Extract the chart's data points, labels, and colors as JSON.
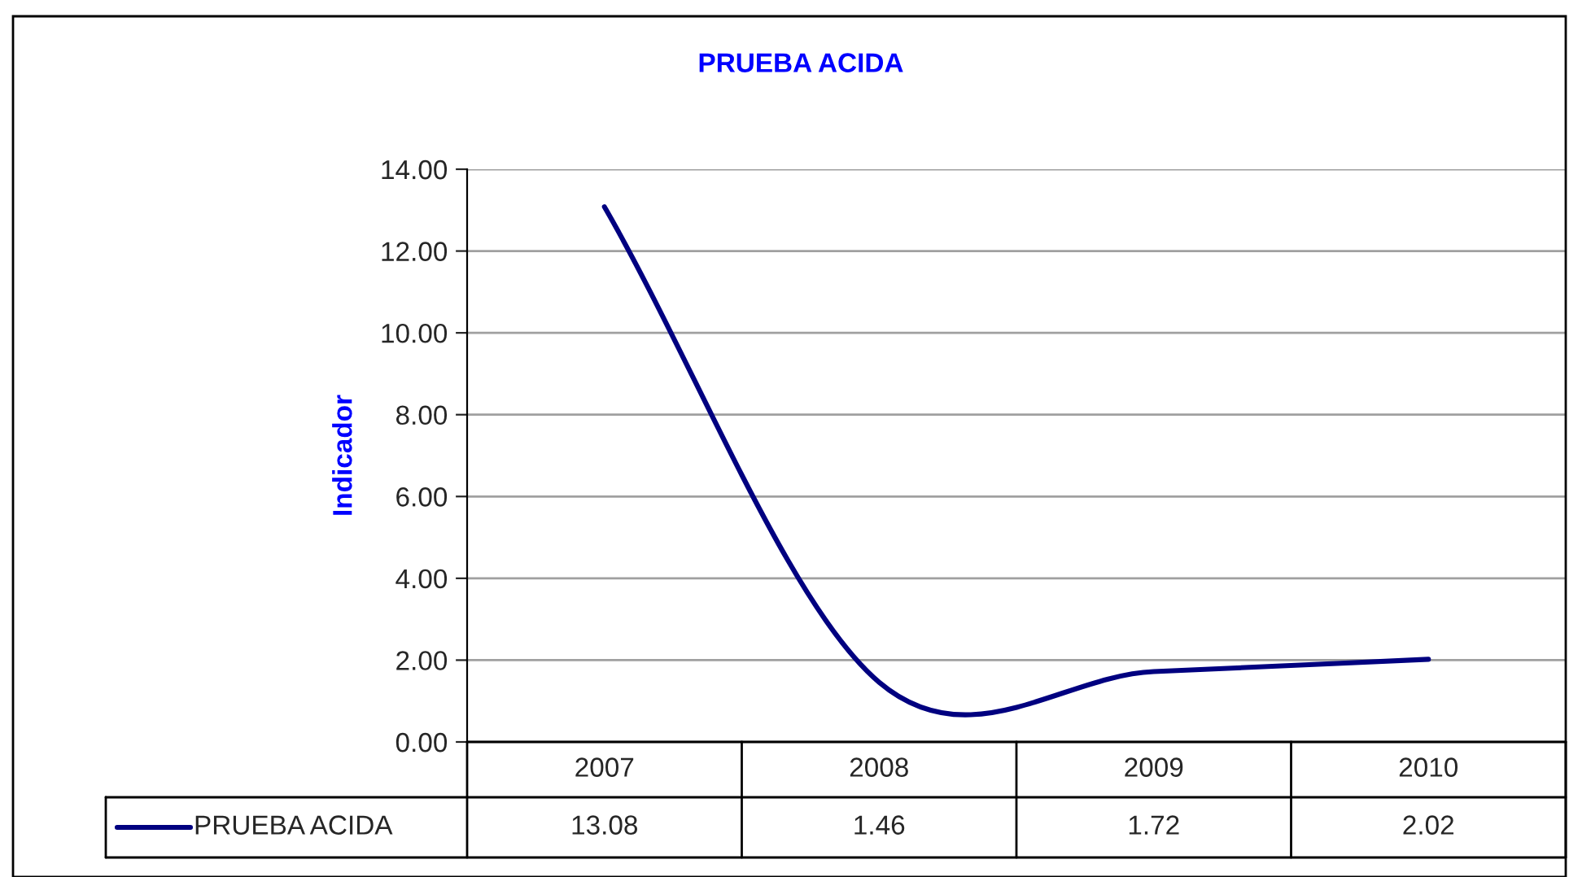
{
  "chart_data": {
    "type": "line",
    "title": "PRUEBA ACIDA",
    "ylabel": "Indicador",
    "categories": [
      "2007",
      "2008",
      "2009",
      "2010"
    ],
    "series": [
      {
        "name": "PRUEBA ACIDA",
        "color": "#000080",
        "values": [
          13.08,
          1.46,
          1.72,
          2.02
        ]
      }
    ],
    "ylim": [
      0,
      14
    ],
    "yticks": [
      {
        "value": 0,
        "label": "0.00"
      },
      {
        "value": 2,
        "label": "2.00"
      },
      {
        "value": 4,
        "label": "4.00"
      },
      {
        "value": 6,
        "label": "6.00"
      },
      {
        "value": 8,
        "label": "8.00"
      },
      {
        "value": 10,
        "label": "10.00"
      },
      {
        "value": 12,
        "label": "12.00"
      },
      {
        "value": 14,
        "label": "14.00"
      }
    ],
    "grid": "y",
    "legend": "bottom left",
    "data_labels": true
  }
}
